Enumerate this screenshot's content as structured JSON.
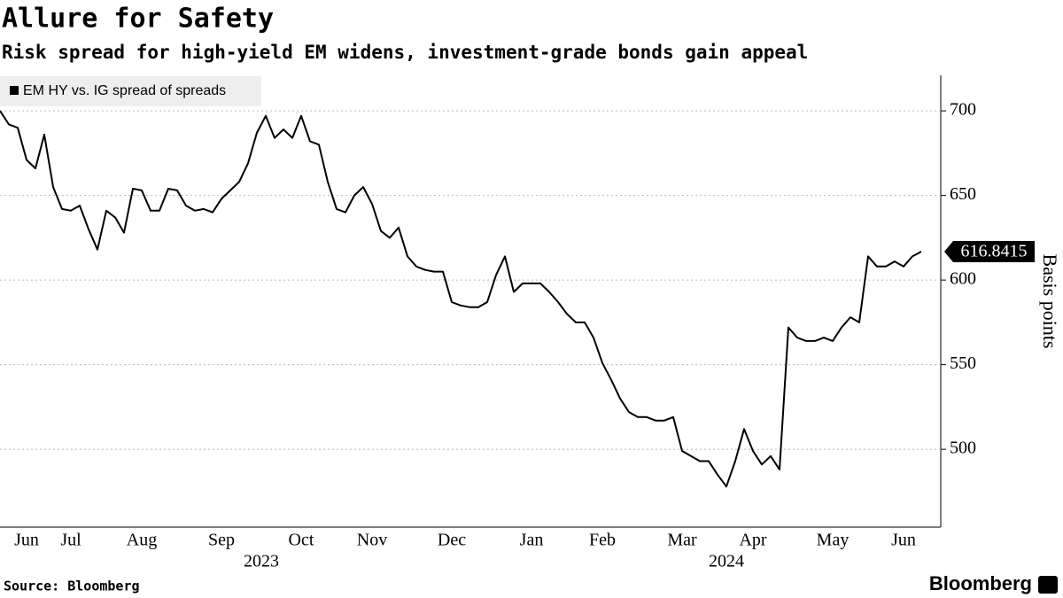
{
  "chart_data": {
    "type": "line",
    "title": "Allure for Safety",
    "subtitle": "Risk spread for high-yield EM widens, investment-grade bonds gain appeal",
    "source": "Source: Bloomberg",
    "brand": "Bloomberg",
    "y_label": "Basis points",
    "categories": [
      null,
      null,
      null,
      "Jun",
      null,
      null,
      null,
      null,
      "Jul",
      null,
      null,
      null,
      null,
      null,
      null,
      null,
      "Aug",
      null,
      null,
      null,
      null,
      null,
      null,
      null,
      null,
      "Sep",
      null,
      null,
      null,
      null,
      null,
      null,
      null,
      null,
      "Oct",
      null,
      null,
      null,
      null,
      null,
      null,
      null,
      "Nov",
      null,
      null,
      null,
      null,
      null,
      null,
      null,
      null,
      "Dec",
      null,
      null,
      null,
      null,
      null,
      null,
      null,
      null,
      "Jan",
      null,
      null,
      null,
      null,
      null,
      null,
      null,
      "Feb",
      null,
      null,
      null,
      null,
      null,
      null,
      null,
      null,
      "Mar",
      null,
      null,
      null,
      null,
      null,
      null,
      null,
      "Apr",
      null,
      null,
      null,
      null,
      null,
      null,
      null,
      null,
      "May",
      null,
      null,
      null,
      null,
      null,
      null,
      null,
      "Jun",
      null,
      null
    ],
    "x_groups": [
      {
        "label": "2023",
        "count": 60
      },
      {
        "label": "2024",
        "count": 45
      }
    ],
    "series": [
      {
        "name": "EM HY vs. IG spread of spreads",
        "color": "#000000",
        "values": [
          700,
          692,
          690,
          671,
          666,
          686,
          655,
          642,
          641,
          644,
          630,
          618,
          641,
          637,
          628,
          654,
          653,
          641,
          641,
          654,
          653,
          644,
          641,
          642,
          640,
          648,
          653,
          658,
          669,
          687,
          697,
          684,
          689,
          684,
          697,
          682,
          680,
          658,
          642,
          640,
          650,
          655,
          645,
          629,
          625,
          631,
          614,
          608,
          606,
          605,
          605,
          587,
          585,
          584,
          584,
          587,
          603,
          614,
          593,
          598,
          598,
          598,
          593,
          587,
          580,
          575,
          575,
          566,
          551,
          541,
          530,
          522,
          519,
          519,
          517,
          517,
          519,
          499,
          496,
          493,
          493,
          485,
          478,
          493,
          512,
          499,
          491,
          496,
          488,
          572,
          566,
          564,
          564,
          566,
          564,
          572,
          578,
          575,
          614,
          608,
          608,
          611,
          608,
          614,
          616.8415
        ]
      }
    ],
    "ylim": [
      454,
      721
    ],
    "yticks": [
      500,
      550,
      600,
      650,
      700
    ],
    "grid": true,
    "legend": "top-left"
  }
}
